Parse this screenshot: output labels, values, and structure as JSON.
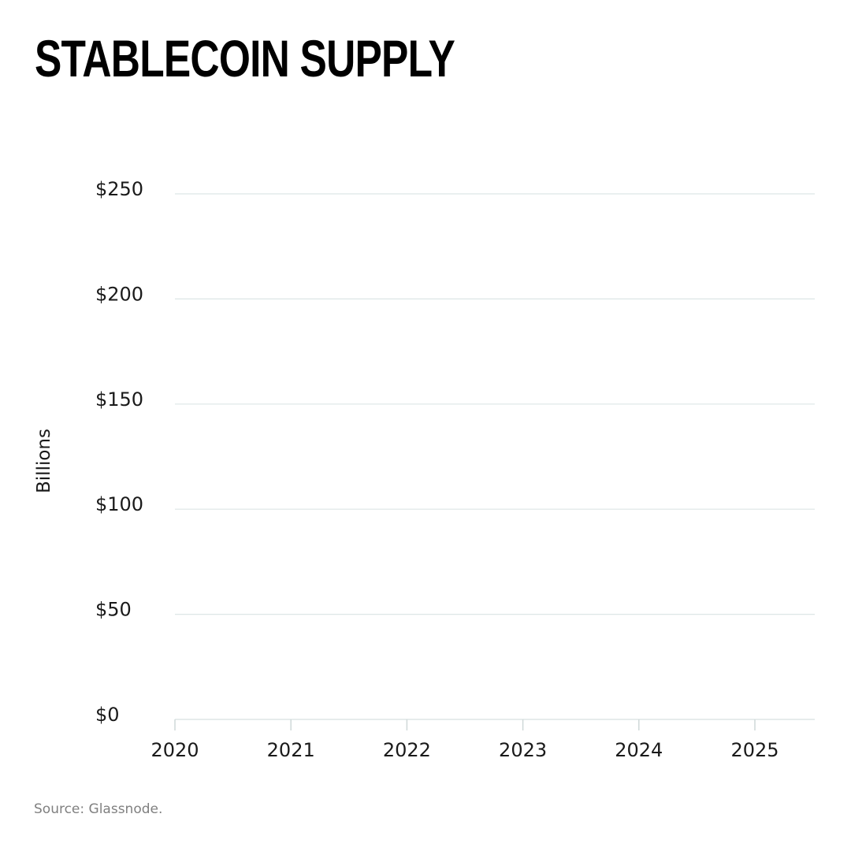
{
  "title": "STABLECOIN SUPPLY",
  "source": "Source: Glassnode.",
  "chart_data": {
    "type": "line",
    "title": "STABLECOIN SUPPLY",
    "xlabel": "",
    "ylabel": "Billions",
    "y_ticks": [
      "$0",
      "$50",
      "$100",
      "$150",
      "$200",
      "$250"
    ],
    "y_tick_values": [
      0,
      50,
      100,
      150,
      200,
      250
    ],
    "x_ticks": [
      "2020",
      "2021",
      "2022",
      "2023",
      "2024",
      "2025"
    ],
    "x_tick_values": [
      2020,
      2021,
      2022,
      2023,
      2024,
      2025
    ],
    "xlim": [
      2020,
      2025.5
    ],
    "ylim": [
      0,
      250
    ],
    "grid": true,
    "gridline_color": "#dde6e6",
    "series": []
  }
}
